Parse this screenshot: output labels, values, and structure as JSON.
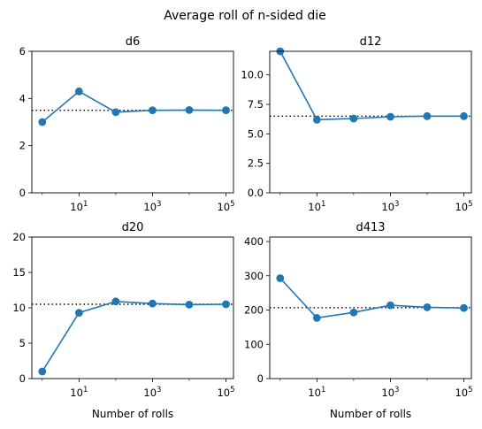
{
  "figure": {
    "suptitle": "Average roll of n-sided die",
    "line_color": "#1f77b4",
    "reference_color": "#000000"
  },
  "chart_data": [
    {
      "type": "line",
      "title": "d6",
      "xlabel": "",
      "ylabel": "",
      "xscale": "log",
      "x": [
        1,
        10,
        100,
        1000,
        10000,
        100000
      ],
      "series": [
        {
          "values": [
            3.0,
            4.3,
            3.42,
            3.5,
            3.51,
            3.5
          ]
        }
      ],
      "reference_line": {
        "y": 3.5,
        "style": "dotted"
      },
      "ylim": [
        0,
        6
      ],
      "yticks": [
        "0",
        "2",
        "4",
        "6"
      ],
      "xticks": [
        "10^1",
        "10^3",
        "10^5"
      ],
      "grid": false
    },
    {
      "type": "line",
      "title": "d12",
      "xlabel": "",
      "ylabel": "",
      "xscale": "log",
      "x": [
        1,
        10,
        100,
        1000,
        10000,
        100000
      ],
      "series": [
        {
          "values": [
            12.0,
            6.2,
            6.3,
            6.45,
            6.5,
            6.5
          ]
        }
      ],
      "reference_line": {
        "y": 6.5,
        "style": "dotted"
      },
      "ylim": [
        0,
        12
      ],
      "yticks": [
        "0.0",
        "2.5",
        "5.0",
        "7.5",
        "10.0"
      ],
      "xticks": [
        "10^1",
        "10^3",
        "10^5"
      ],
      "grid": false
    },
    {
      "type": "line",
      "title": "d20",
      "xlabel": "Number of rolls",
      "ylabel": "",
      "xscale": "log",
      "x": [
        1,
        10,
        100,
        1000,
        10000,
        100000
      ],
      "series": [
        {
          "values": [
            1.0,
            9.3,
            10.9,
            10.6,
            10.45,
            10.5
          ]
        }
      ],
      "reference_line": {
        "y": 10.5,
        "style": "dotted"
      },
      "ylim": [
        0,
        20
      ],
      "yticks": [
        "0",
        "5",
        "10",
        "15",
        "20"
      ],
      "xticks": [
        "10^1",
        "10^3",
        "10^5"
      ],
      "grid": false
    },
    {
      "type": "line",
      "title": "d413",
      "xlabel": "Number of rolls",
      "ylabel": "",
      "xscale": "log",
      "x": [
        1,
        10,
        100,
        1000,
        10000,
        100000
      ],
      "series": [
        {
          "values": [
            293,
            177,
            193,
            214,
            208,
            206
          ]
        }
      ],
      "reference_line": {
        "y": 207,
        "style": "dotted"
      },
      "ylim": [
        0,
        413
      ],
      "yticks": [
        "0",
        "100",
        "200",
        "300",
        "400"
      ],
      "xticks": [
        "10^1",
        "10^3",
        "10^5"
      ],
      "grid": false
    }
  ]
}
